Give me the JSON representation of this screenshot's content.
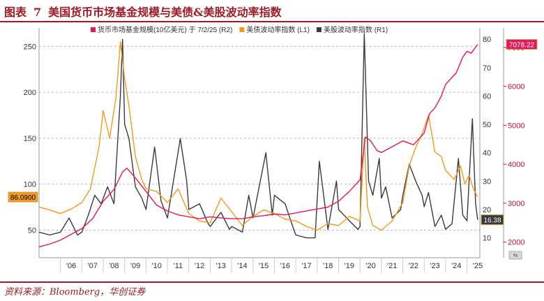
{
  "header": {
    "figure_label": "图表",
    "figure_number": "7",
    "title": "美国货币市场基金规模与美债&美股波动率指数"
  },
  "source": "资料来源：Bloomberg，华创证券",
  "colors": {
    "mmf": "#e2185b",
    "bond_vol": "#f29a1f",
    "equity_vol": "#3a3a3a",
    "brand": "#9b1c26"
  },
  "chart_data": {
    "type": "line",
    "x_tick_labels": [
      "'06",
      "'07",
      "'08",
      "'09",
      "'10",
      "'11",
      "'12",
      "'13",
      "'14",
      "'15",
      "'16",
      "'17",
      "'18",
      "'19",
      "'20",
      "'21",
      "'22",
      "'23",
      "'24",
      "'25"
    ],
    "x_range": [
      2005.0,
      2025.6
    ],
    "axes": {
      "left": {
        "ticks": [
          50,
          100,
          150,
          200,
          250
        ],
        "range": [
          20,
          270
        ]
      },
      "right_inner": {
        "ticks": [
          10,
          20,
          30,
          40,
          50,
          60,
          70,
          80
        ],
        "range": [
          3,
          84
        ]
      },
      "right_outer": {
        "ticks": [
          2000,
          3000,
          4000,
          5000,
          6000,
          7000
        ],
        "range": [
          1600,
          7500
        ]
      }
    },
    "series": [
      {
        "name": "货币市场基金规模(10亿美元) 于 7/2/25 (R2)",
        "axis": "right_outer",
        "last_label": "7078.22",
        "points": [
          [
            2005.0,
            1880
          ],
          [
            2005.5,
            1950
          ],
          [
            2006.0,
            2050
          ],
          [
            2006.5,
            2200
          ],
          [
            2007.0,
            2350
          ],
          [
            2007.5,
            2600
          ],
          [
            2008.0,
            3050
          ],
          [
            2008.5,
            3350
          ],
          [
            2008.9,
            3800
          ],
          [
            2009.1,
            3900
          ],
          [
            2009.5,
            3650
          ],
          [
            2010.0,
            3300
          ],
          [
            2010.5,
            2950
          ],
          [
            2011.0,
            2800
          ],
          [
            2011.5,
            2700
          ],
          [
            2012.0,
            2650
          ],
          [
            2012.5,
            2600
          ],
          [
            2013.0,
            2650
          ],
          [
            2013.5,
            2620
          ],
          [
            2014.0,
            2600
          ],
          [
            2014.5,
            2600
          ],
          [
            2015.0,
            2650
          ],
          [
            2015.5,
            2680
          ],
          [
            2016.0,
            2720
          ],
          [
            2016.5,
            2700
          ],
          [
            2017.0,
            2750
          ],
          [
            2017.5,
            2800
          ],
          [
            2018.0,
            2850
          ],
          [
            2018.5,
            2900
          ],
          [
            2019.0,
            3050
          ],
          [
            2019.5,
            3300
          ],
          [
            2020.0,
            3600
          ],
          [
            2020.25,
            4700
          ],
          [
            2020.5,
            4600
          ],
          [
            2020.8,
            4350
          ],
          [
            2021.0,
            4300
          ],
          [
            2021.5,
            4450
          ],
          [
            2022.0,
            4600
          ],
          [
            2022.5,
            4500
          ],
          [
            2023.0,
            4800
          ],
          [
            2023.25,
            5300
          ],
          [
            2023.5,
            5450
          ],
          [
            2023.8,
            5750
          ],
          [
            2024.0,
            6050
          ],
          [
            2024.5,
            6350
          ],
          [
            2024.8,
            6750
          ],
          [
            2025.0,
            6900
          ],
          [
            2025.2,
            6850
          ],
          [
            2025.5,
            7078
          ]
        ]
      },
      {
        "name": "美债波动率指数 (L1)",
        "axis": "left",
        "last_label": "86.0900",
        "points": [
          [
            2005.0,
            75
          ],
          [
            2005.5,
            72
          ],
          [
            2006.0,
            68
          ],
          [
            2006.5,
            73
          ],
          [
            2007.0,
            80
          ],
          [
            2007.4,
            95
          ],
          [
            2007.8,
            140
          ],
          [
            2008.0,
            180
          ],
          [
            2008.3,
            150
          ],
          [
            2008.6,
            195
          ],
          [
            2008.8,
            255
          ],
          [
            2009.0,
            215
          ],
          [
            2009.2,
            185
          ],
          [
            2009.5,
            130
          ],
          [
            2009.8,
            105
          ],
          [
            2010.0,
            95
          ],
          [
            2010.5,
            92
          ],
          [
            2011.0,
            80
          ],
          [
            2011.5,
            95
          ],
          [
            2012.0,
            68
          ],
          [
            2012.5,
            60
          ],
          [
            2013.0,
            58
          ],
          [
            2013.5,
            85
          ],
          [
            2014.0,
            70
          ],
          [
            2014.5,
            55
          ],
          [
            2015.0,
            65
          ],
          [
            2015.5,
            72
          ],
          [
            2016.0,
            68
          ],
          [
            2016.5,
            62
          ],
          [
            2017.0,
            60
          ],
          [
            2017.5,
            54
          ],
          [
            2018.0,
            50
          ],
          [
            2018.5,
            57
          ],
          [
            2019.0,
            55
          ],
          [
            2019.5,
            65
          ],
          [
            2020.0,
            60
          ],
          [
            2020.2,
            150
          ],
          [
            2020.35,
            75
          ],
          [
            2020.6,
            55
          ],
          [
            2021.0,
            50
          ],
          [
            2021.5,
            60
          ],
          [
            2022.0,
            80
          ],
          [
            2022.3,
            120
          ],
          [
            2022.6,
            140
          ],
          [
            2022.9,
            155
          ],
          [
            2023.2,
            175
          ],
          [
            2023.5,
            135
          ],
          [
            2023.8,
            130
          ],
          [
            2024.0,
            115
          ],
          [
            2024.4,
            105
          ],
          [
            2024.7,
            120
          ],
          [
            2024.9,
            100
          ],
          [
            2025.1,
            110
          ],
          [
            2025.3,
            95
          ],
          [
            2025.5,
            86
          ]
        ]
      },
      {
        "name": "美股波动率指数 (R1)",
        "axis": "right_inner",
        "last_label": "16.38",
        "points": [
          [
            2005.0,
            12
          ],
          [
            2005.5,
            11
          ],
          [
            2006.0,
            12
          ],
          [
            2006.4,
            17
          ],
          [
            2006.8,
            11
          ],
          [
            2007.0,
            12
          ],
          [
            2007.3,
            18
          ],
          [
            2007.6,
            25
          ],
          [
            2007.9,
            22
          ],
          [
            2008.2,
            28
          ],
          [
            2008.5,
            22
          ],
          [
            2008.8,
            60
          ],
          [
            2008.9,
            80
          ],
          [
            2009.0,
            50
          ],
          [
            2009.2,
            45
          ],
          [
            2009.5,
            28
          ],
          [
            2009.8,
            24
          ],
          [
            2010.0,
            20
          ],
          [
            2010.4,
            42
          ],
          [
            2010.7,
            23
          ],
          [
            2011.0,
            17
          ],
          [
            2011.6,
            45
          ],
          [
            2011.9,
            30
          ],
          [
            2012.0,
            20
          ],
          [
            2012.5,
            22
          ],
          [
            2012.9,
            15
          ],
          [
            2013.0,
            14
          ],
          [
            2013.5,
            19
          ],
          [
            2013.9,
            13
          ],
          [
            2014.0,
            14
          ],
          [
            2014.5,
            12
          ],
          [
            2014.8,
            25
          ],
          [
            2015.0,
            17
          ],
          [
            2015.6,
            40
          ],
          [
            2015.9,
            18
          ],
          [
            2016.0,
            25
          ],
          [
            2016.5,
            22
          ],
          [
            2016.9,
            13
          ],
          [
            2017.0,
            11
          ],
          [
            2017.5,
            10
          ],
          [
            2017.9,
            10
          ],
          [
            2018.1,
            37
          ],
          [
            2018.5,
            13
          ],
          [
            2018.9,
            30
          ],
          [
            2019.0,
            20
          ],
          [
            2019.5,
            16
          ],
          [
            2019.9,
            13
          ],
          [
            2020.0,
            14
          ],
          [
            2020.2,
            82
          ],
          [
            2020.4,
            30
          ],
          [
            2020.6,
            25
          ],
          [
            2020.9,
            38
          ],
          [
            2021.0,
            24
          ],
          [
            2021.2,
            28
          ],
          [
            2021.5,
            17
          ],
          [
            2021.9,
            20
          ],
          [
            2022.0,
            25
          ],
          [
            2022.3,
            36
          ],
          [
            2022.6,
            30
          ],
          [
            2022.9,
            25
          ],
          [
            2023.0,
            21
          ],
          [
            2023.2,
            26
          ],
          [
            2023.5,
            14
          ],
          [
            2023.8,
            18
          ],
          [
            2024.0,
            13
          ],
          [
            2024.3,
            15
          ],
          [
            2024.6,
            38
          ],
          [
            2024.8,
            18
          ],
          [
            2025.0,
            16
          ],
          [
            2025.25,
            52
          ],
          [
            2025.4,
            22
          ],
          [
            2025.5,
            16.38
          ]
        ]
      }
    ]
  }
}
